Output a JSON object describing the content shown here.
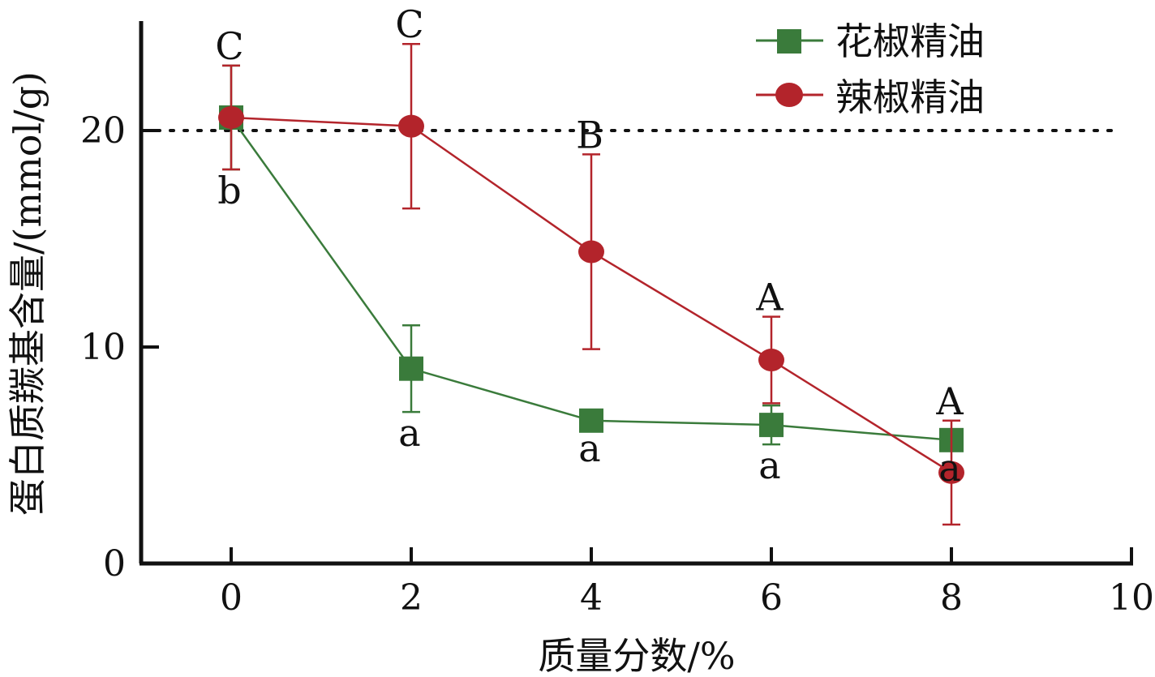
{
  "chart_data": {
    "type": "line",
    "xlabel": "质量分数/%",
    "ylabel": "蛋白质羰基含量/(mmol/g)",
    "xlim": [
      -0.5,
      10
    ],
    "ylim": [
      0,
      25
    ],
    "x_ticks": [
      "0",
      "2",
      "4",
      "6",
      "8",
      "10"
    ],
    "y_ticks": [
      "0",
      "10",
      "20"
    ],
    "reference_line": {
      "y": 20,
      "style": "dotted"
    },
    "legend_position": "top-right",
    "series": [
      {
        "name": "花椒精油",
        "color": "#3a7b3b",
        "marker": "square",
        "x": [
          0,
          2,
          4,
          6,
          8
        ],
        "y": [
          20.6,
          9.0,
          6.6,
          6.4,
          5.7
        ],
        "error": [
          2.4,
          2.0,
          0.3,
          0.9,
          0.3
        ],
        "letters": [
          "b",
          "a",
          "a",
          "a",
          "a"
        ]
      },
      {
        "name": "辣椒精油",
        "color": "#b3242b",
        "marker": "circle",
        "x": [
          0,
          2,
          4,
          6,
          8
        ],
        "y": [
          20.6,
          20.2,
          14.4,
          9.4,
          4.2
        ],
        "error": [
          2.4,
          3.8,
          4.5,
          2.0,
          2.4
        ],
        "letters": [
          "C",
          "C",
          "B",
          "A",
          "A"
        ]
      }
    ]
  }
}
